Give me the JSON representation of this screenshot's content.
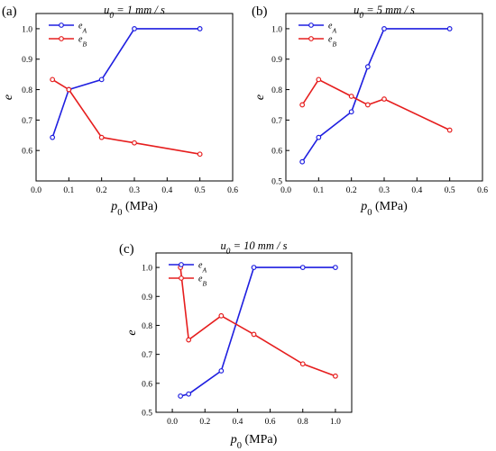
{
  "colors": {
    "eA": "#1f1fe0",
    "eB": "#e61e1e",
    "axis": "#000000"
  },
  "chart_data": [
    {
      "type": "line",
      "panel_label": "(a)",
      "title": "u₀ = 1 mm / s",
      "xlabel": "p₀ (MPa)",
      "ylabel": "e",
      "xlim": [
        0.0,
        0.6
      ],
      "ylim": [
        0.5,
        1.05
      ],
      "xticks": [
        0.0,
        0.1,
        0.2,
        0.3,
        0.4,
        0.5,
        0.6
      ],
      "xticklabels": [
        "0.0",
        "0.1",
        "0.2",
        "0.3",
        "0.4",
        "0.5",
        "0.6"
      ],
      "yticks": [
        0.6,
        0.7,
        0.8,
        0.9,
        1.0
      ],
      "yticklabels": [
        "0.6",
        "0.7",
        "0.8",
        "0.9",
        "1.0"
      ],
      "legend_position": "top-left",
      "grid": false,
      "series": [
        {
          "name": "eA",
          "x": [
            0.05,
            0.1,
            0.2,
            0.3,
            0.5
          ],
          "y": [
            0.643,
            0.8,
            0.833,
            1.0,
            1.0
          ]
        },
        {
          "name": "eB",
          "x": [
            0.05,
            0.1,
            0.2,
            0.3,
            0.5
          ],
          "y": [
            0.833,
            0.8,
            0.643,
            0.625,
            0.588
          ]
        }
      ]
    },
    {
      "type": "line",
      "panel_label": "(b)",
      "title": "u₀ = 5 mm / s",
      "xlabel": "p₀ (MPa)",
      "ylabel": "e",
      "xlim": [
        0.0,
        0.6
      ],
      "ylim": [
        0.5,
        1.05
      ],
      "xticks": [
        0.0,
        0.1,
        0.2,
        0.3,
        0.4,
        0.5,
        0.6
      ],
      "xticklabels": [
        "0.0",
        "0.1",
        "0.2",
        "0.3",
        "0.4",
        "0.5",
        "0.6"
      ],
      "yticks": [
        0.5,
        0.6,
        0.7,
        0.8,
        0.9,
        1.0
      ],
      "yticklabels": [
        "0.5",
        "0.6",
        "0.7",
        "0.8",
        "0.9",
        "1.0"
      ],
      "legend_position": "top-left",
      "grid": false,
      "series": [
        {
          "name": "eA",
          "x": [
            0.05,
            0.1,
            0.2,
            0.25,
            0.3,
            0.5
          ],
          "y": [
            0.563,
            0.643,
            0.727,
            0.875,
            1.0,
            1.0
          ]
        },
        {
          "name": "eB",
          "x": [
            0.05,
            0.1,
            0.2,
            0.25,
            0.3,
            0.5
          ],
          "y": [
            0.75,
            0.833,
            0.778,
            0.75,
            0.769,
            0.667
          ]
        }
      ]
    },
    {
      "type": "line",
      "panel_label": "(c)",
      "title": "u₀ = 10 mm / s",
      "xlabel": "p₀ (MPa)",
      "ylabel": "e",
      "xlim": [
        -0.1,
        1.1
      ],
      "ylim": [
        0.5,
        1.05
      ],
      "xticks": [
        0.0,
        0.2,
        0.4,
        0.6,
        0.8,
        1.0
      ],
      "xticklabels": [
        "0.0",
        "0.2",
        "0.4",
        "0.6",
        "0.8",
        "1.0"
      ],
      "yticks": [
        0.5,
        0.6,
        0.7,
        0.8,
        0.9,
        1.0
      ],
      "yticklabels": [
        "0.5",
        "0.6",
        "0.7",
        "0.8",
        "0.9",
        "1.0"
      ],
      "legend_position": "top-left",
      "grid": false,
      "series": [
        {
          "name": "eA",
          "x": [
            0.05,
            0.1,
            0.3,
            0.5,
            0.8,
            1.0
          ],
          "y": [
            0.556,
            0.563,
            0.643,
            1.0,
            1.0,
            1.0
          ]
        },
        {
          "name": "eB",
          "x": [
            0.05,
            0.1,
            0.3,
            0.5,
            0.8,
            1.0
          ],
          "y": [
            1.0,
            0.75,
            0.833,
            0.769,
            0.667,
            0.625
          ]
        }
      ]
    }
  ]
}
